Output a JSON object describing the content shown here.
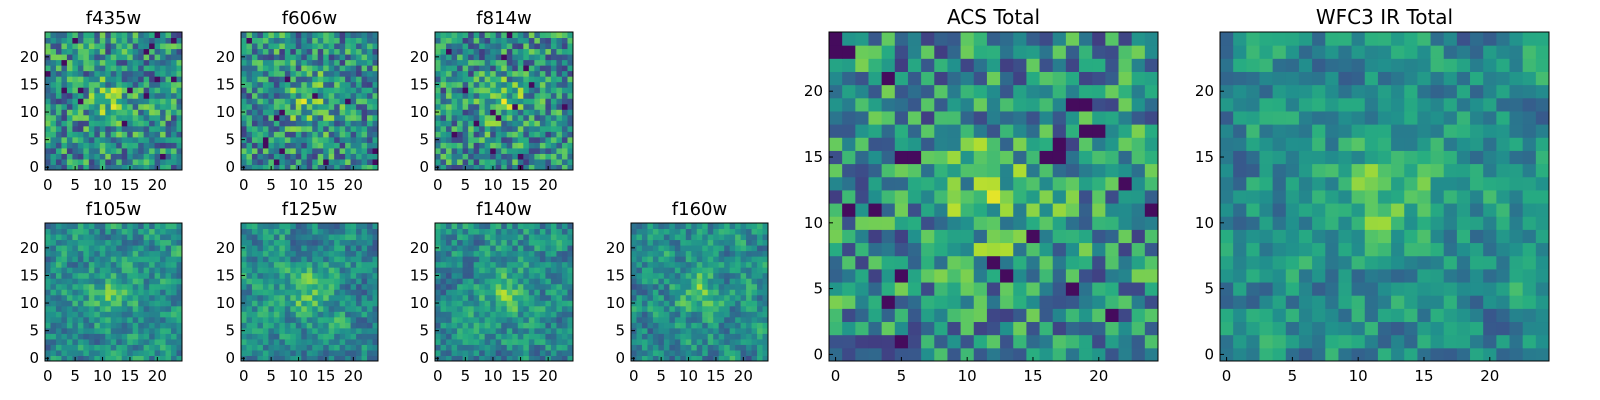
{
  "chart_data": [
    {
      "type": "heatmap",
      "title": "f435w",
      "xticks": [
        "0",
        "5",
        "10",
        "15",
        "20"
      ],
      "yticks": [
        "0",
        "5",
        "10",
        "15",
        "20"
      ],
      "xlim": [
        0,
        25
      ],
      "ylim": [
        0,
        25
      ],
      "grid_size": 25,
      "colormap": "viridis",
      "seed": 11,
      "mode": "noisy"
    },
    {
      "type": "heatmap",
      "title": "f606w",
      "xticks": [
        "0",
        "5",
        "10",
        "15",
        "20"
      ],
      "yticks": [
        "0",
        "5",
        "10",
        "15",
        "20"
      ],
      "xlim": [
        0,
        25
      ],
      "ylim": [
        0,
        25
      ],
      "grid_size": 25,
      "colormap": "viridis",
      "seed": 23,
      "mode": "noisy"
    },
    {
      "type": "heatmap",
      "title": "f814w",
      "xticks": [
        "0",
        "5",
        "10",
        "15",
        "20"
      ],
      "yticks": [
        "0",
        "5",
        "10",
        "15",
        "20"
      ],
      "xlim": [
        0,
        25
      ],
      "ylim": [
        0,
        25
      ],
      "grid_size": 25,
      "colormap": "viridis",
      "seed": 37,
      "mode": "noisy"
    },
    {
      "type": "heatmap",
      "title": "f105w",
      "xticks": [
        "0",
        "5",
        "10",
        "15",
        "20"
      ],
      "yticks": [
        "0",
        "5",
        "10",
        "15",
        "20"
      ],
      "xlim": [
        0,
        25
      ],
      "ylim": [
        0,
        25
      ],
      "grid_size": 25,
      "colormap": "viridis",
      "seed": 41,
      "mode": "smooth"
    },
    {
      "type": "heatmap",
      "title": "f125w",
      "xticks": [
        "0",
        "5",
        "10",
        "15",
        "20"
      ],
      "yticks": [
        "0",
        "5",
        "10",
        "15",
        "20"
      ],
      "xlim": [
        0,
        25
      ],
      "ylim": [
        0,
        25
      ],
      "grid_size": 25,
      "colormap": "viridis",
      "seed": 53,
      "mode": "smooth"
    },
    {
      "type": "heatmap",
      "title": "f140w",
      "xticks": [
        "0",
        "5",
        "10",
        "15",
        "20"
      ],
      "yticks": [
        "0",
        "5",
        "10",
        "15",
        "20"
      ],
      "xlim": [
        0,
        25
      ],
      "ylim": [
        0,
        25
      ],
      "grid_size": 25,
      "colormap": "viridis",
      "seed": 67,
      "mode": "smooth"
    },
    {
      "type": "heatmap",
      "title": "f160w",
      "xticks": [
        "0",
        "5",
        "10",
        "15",
        "20"
      ],
      "yticks": [
        "0",
        "5",
        "10",
        "15",
        "20"
      ],
      "xlim": [
        0,
        25
      ],
      "ylim": [
        0,
        25
      ],
      "grid_size": 25,
      "colormap": "viridis",
      "seed": 79,
      "mode": "smooth"
    },
    {
      "type": "heatmap",
      "title": "ACS Total",
      "xticks": [
        "0",
        "5",
        "10",
        "15",
        "20"
      ],
      "yticks": [
        "0",
        "5",
        "10",
        "15",
        "20"
      ],
      "xlim": [
        0,
        25
      ],
      "ylim": [
        0,
        25
      ],
      "grid_size": 25,
      "colormap": "viridis",
      "seed": 97,
      "mode": "noisy"
    },
    {
      "type": "heatmap",
      "title": "WFC3 IR Total",
      "xticks": [
        "0",
        "5",
        "10",
        "15",
        "20"
      ],
      "yticks": [
        "0",
        "5",
        "10",
        "15",
        "20"
      ],
      "xlim": [
        0,
        25
      ],
      "ylim": [
        0,
        25
      ],
      "grid_size": 25,
      "colormap": "viridis",
      "seed": 113,
      "mode": "smooth"
    }
  ]
}
